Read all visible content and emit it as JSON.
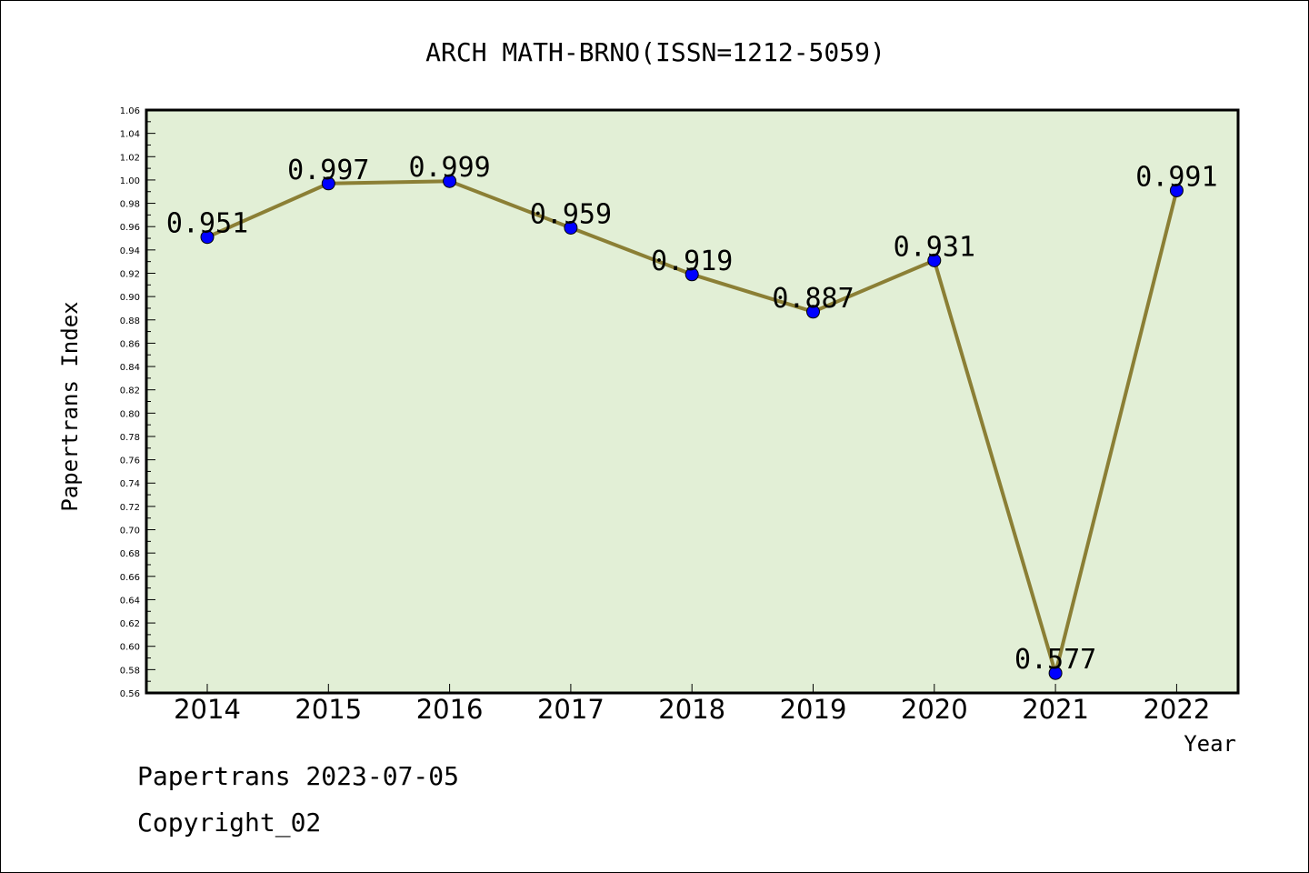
{
  "chart_data": {
    "type": "line",
    "title": "ARCH MATH-BRNO(ISSN=1212-5059)",
    "xlabel": "Year",
    "ylabel": "Papertrans Index",
    "categories": [
      "2014",
      "2015",
      "2016",
      "2017",
      "2018",
      "2019",
      "2020",
      "2021",
      "2022"
    ],
    "values": [
      0.951,
      0.997,
      0.999,
      0.959,
      0.919,
      0.887,
      0.931,
      0.577,
      0.991
    ],
    "value_labels": [
      "0.951",
      "0.997",
      "0.999",
      "0.959",
      "0.919",
      "0.887",
      "0.931",
      "0.577",
      "0.991"
    ],
    "ylim": [
      0.56,
      1.06
    ],
    "ytick_step": 0.02,
    "ytick_labels": [
      "0.56",
      "0.58",
      "0.60",
      "0.62",
      "0.64",
      "0.66",
      "0.68",
      "0.70",
      "0.72",
      "0.74",
      "0.76",
      "0.78",
      "0.80",
      "0.82",
      "0.84",
      "0.86",
      "0.88",
      "0.90",
      "0.92",
      "0.94",
      "0.96",
      "0.98",
      "1.00",
      "1.02",
      "1.04",
      "1.06"
    ],
    "grid": false,
    "legend": "none",
    "colors": {
      "plot_background": "#e2efd6",
      "line": "#8b7f35",
      "marker": "#0000ff"
    }
  },
  "footer": {
    "line1": "Papertrans 2023-07-05",
    "line2": "Copyright_02"
  }
}
